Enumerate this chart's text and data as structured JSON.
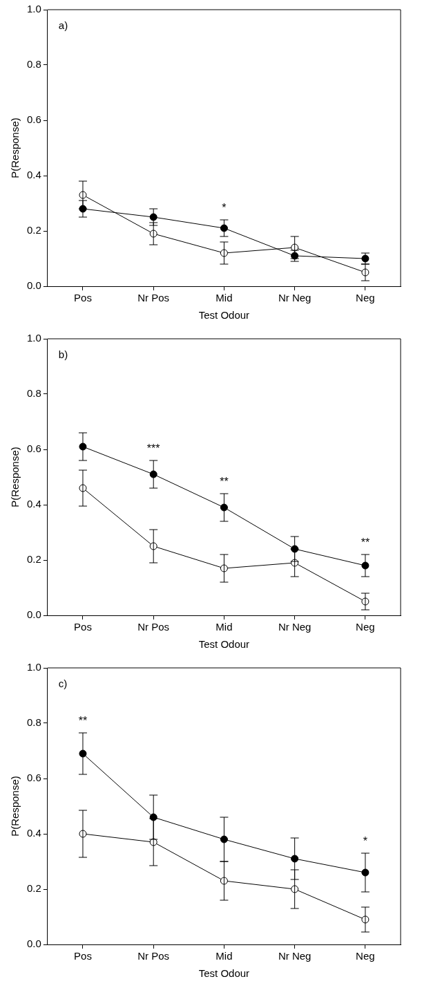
{
  "chart_data": [
    {
      "type": "line",
      "title": "a)",
      "xlabel": "Test Odour",
      "ylabel": "P(Response)",
      "categories": [
        "Pos",
        "Nr Pos",
        "Mid",
        "Nr Neg",
        "Neg"
      ],
      "series": [
        {
          "color": "#000000",
          "values": [
            0.28,
            0.25,
            0.21,
            0.11,
            0.1
          ],
          "errors": [
            0.03,
            0.03,
            0.03,
            0.02,
            0.02
          ],
          "value_labels": [
            null,
            null,
            "*",
            null,
            null
          ]
        },
        {
          "color": "#ffffff",
          "values": [
            0.33,
            0.19,
            0.12,
            0.14,
            0.05
          ],
          "errors": [
            0.05,
            0.04,
            0.04,
            0.04,
            0.03
          ]
        }
      ],
      "ylim": [
        0,
        1
      ],
      "yticks": [
        {
          "value": 0,
          "label": "0.0"
        },
        {
          "value": 0.2,
          "label": "0.2"
        },
        {
          "value": 0.4,
          "label": "0.4"
        },
        {
          "value": 0.6,
          "label": "0.6"
        },
        {
          "value": 0.8,
          "label": "0.8"
        },
        {
          "value": 1,
          "label": "1.0"
        }
      ],
      "grid": false,
      "legend": false,
      "marker": "circle",
      "line_style": "solid"
    },
    {
      "type": "line",
      "title": "b)",
      "xlabel": "Test Odour",
      "ylabel": "P(Response)",
      "categories": [
        "Pos",
        "Nr Pos",
        "Mid",
        "Nr Neg",
        "Neg"
      ],
      "series": [
        {
          "color": "#000000",
          "values": [
            0.61,
            0.51,
            0.39,
            0.24,
            0.18
          ],
          "errors": [
            0.05,
            0.05,
            0.05,
            0.045,
            0.04
          ],
          "value_labels": [
            null,
            "***",
            "**",
            null,
            "**"
          ]
        },
        {
          "color": "#ffffff",
          "values": [
            0.46,
            0.25,
            0.17,
            0.19,
            0.05
          ],
          "errors": [
            0.065,
            0.06,
            0.05,
            0.05,
            0.03
          ]
        }
      ],
      "ylim": [
        0,
        1
      ],
      "yticks": [
        {
          "value": 0,
          "label": "0.0"
        },
        {
          "value": 0.2,
          "label": "0.2"
        },
        {
          "value": 0.4,
          "label": "0.4"
        },
        {
          "value": 0.6,
          "label": "0.6"
        },
        {
          "value": 0.8,
          "label": "0.8"
        },
        {
          "value": 1,
          "label": "1.0"
        }
      ],
      "grid": false,
      "legend": false,
      "marker": "circle",
      "line_style": "solid"
    },
    {
      "type": "line",
      "title": "c)",
      "xlabel": "Test Odour",
      "ylabel": "P(Response)",
      "categories": [
        "Pos",
        "Nr Pos",
        "Mid",
        "Nr Neg",
        "Neg"
      ],
      "series": [
        {
          "color": "#000000",
          "values": [
            0.69,
            0.46,
            0.38,
            0.31,
            0.26
          ],
          "errors": [
            0.075,
            0.08,
            0.08,
            0.075,
            0.07
          ],
          "value_labels": [
            "**",
            null,
            null,
            null,
            "*"
          ]
        },
        {
          "color": "#ffffff",
          "values": [
            0.4,
            0.37,
            0.23,
            0.2,
            0.09
          ],
          "errors": [
            0.085,
            0.085,
            0.07,
            0.07,
            0.045
          ]
        }
      ],
      "ylim": [
        0,
        1
      ],
      "yticks": [
        {
          "value": 0,
          "label": "0.0"
        },
        {
          "value": 0.2,
          "label": "0.2"
        },
        {
          "value": 0.4,
          "label": "0.4"
        },
        {
          "value": 0.6,
          "label": "0.6"
        },
        {
          "value": 0.8,
          "label": "0.8"
        },
        {
          "value": 1,
          "label": "1.0"
        }
      ],
      "grid": false,
      "legend": false,
      "marker": "circle",
      "line_style": "solid"
    }
  ]
}
